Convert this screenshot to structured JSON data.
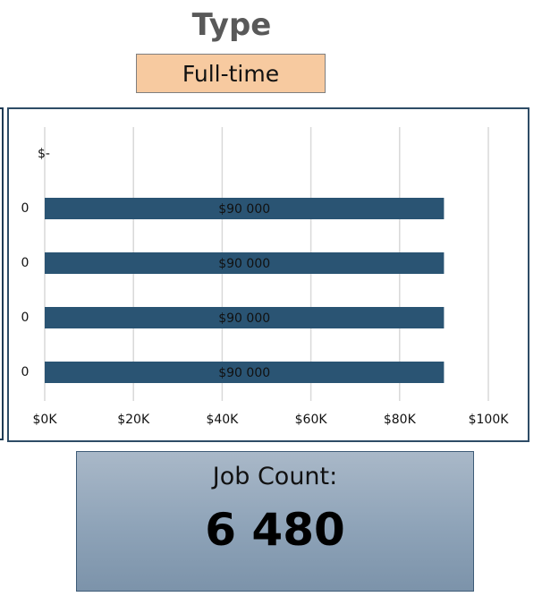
{
  "filter": {
    "title": "Type",
    "selected": "Full-time"
  },
  "chart_data": {
    "type": "bar",
    "orientation": "horizontal",
    "categories": [
      "$-",
      "0",
      "0",
      "0",
      "0"
    ],
    "values": [
      null,
      90000,
      90000,
      90000,
      90000
    ],
    "data_labels": [
      "",
      "$90 000",
      "$90 000",
      "$90 000",
      "$90 000"
    ],
    "x_ticks": [
      0,
      20000,
      40000,
      60000,
      80000,
      100000
    ],
    "x_tick_labels": [
      "$0K",
      "$20K",
      "$40K",
      "$60K",
      "$80K",
      "$100K"
    ],
    "xlim": [
      0,
      100000
    ],
    "grid": true,
    "bar_color": "#2a5473",
    "title": "",
    "xlabel": "",
    "ylabel": ""
  },
  "job_count": {
    "label": "Job Count:",
    "value": "6 480"
  }
}
